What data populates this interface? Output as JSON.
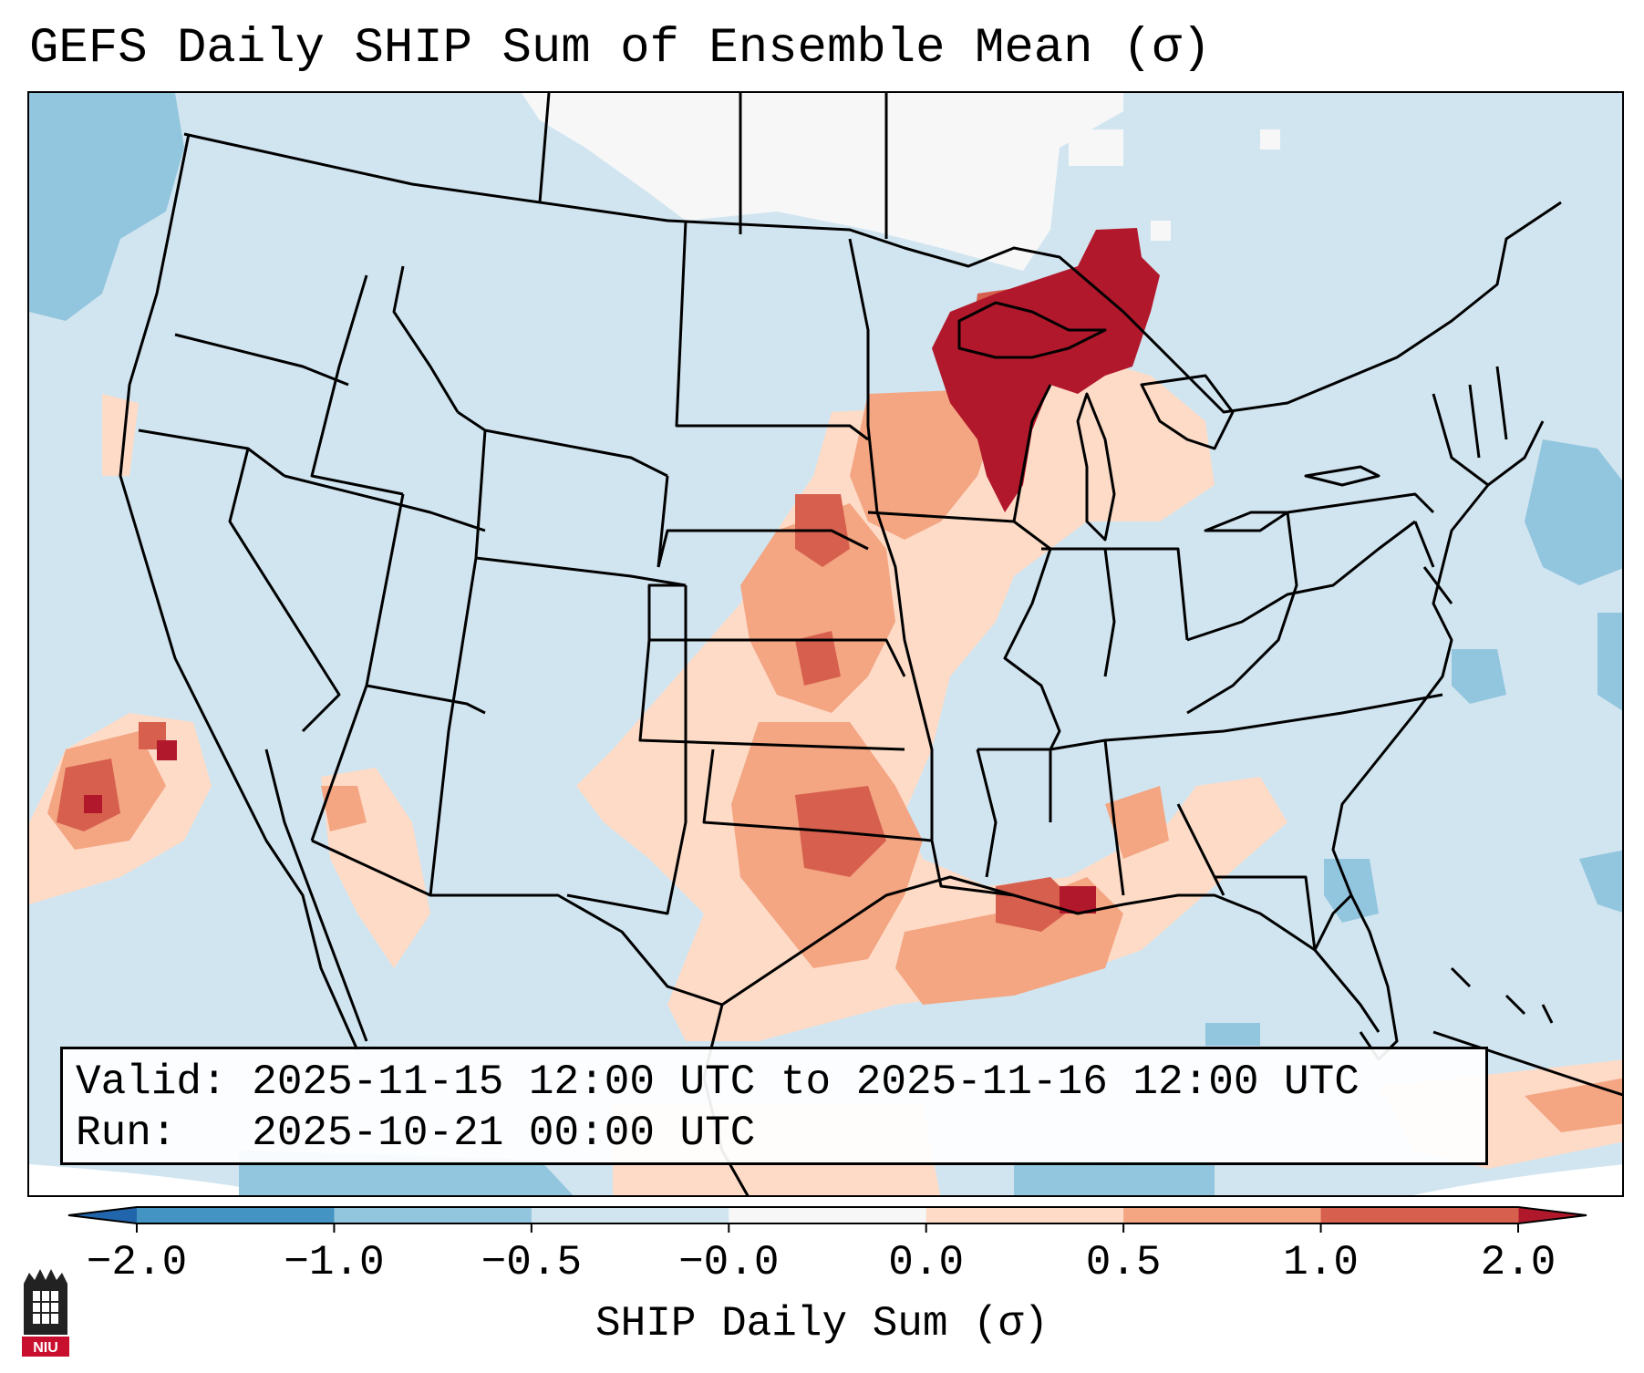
{
  "title": "GEFS Daily SHIP Sum of Ensemble Mean (σ)",
  "info": {
    "valid_label": "Valid:",
    "valid_value": "2025-11-15 12:00 UTC to 2025-11-16 12:00 UTC",
    "run_label": "Run:",
    "run_value": "2025-10-21 00:00 UTC"
  },
  "colorbar": {
    "label": "SHIP Daily Sum (σ)",
    "tick_labels": [
      "−2.0",
      "−1.0",
      "−0.5",
      "−0.0",
      "0.0",
      "0.5",
      "1.0",
      "2.0"
    ],
    "colors": {
      "below_min": "#2166ac",
      "neg_2_to_neg_1": "#4393c3",
      "neg_1_to_neg_05": "#92c5de",
      "neg_05_to_0": "#d1e5f0",
      "zero": "#f7f7f7",
      "pos_0_to_05": "#fddbc7",
      "pos_05_to_1": "#f4a582",
      "pos_1_to_2": "#d6604d",
      "above_max": "#b2182b"
    },
    "extend": "both"
  },
  "map": {
    "projection": "Lambert conformal",
    "region": "Continental United States",
    "features": [
      "state borders",
      "country borders",
      "coastlines",
      "Great Lakes"
    ]
  },
  "logo": {
    "name": "niu-logo-icon",
    "text": "NIU"
  }
}
